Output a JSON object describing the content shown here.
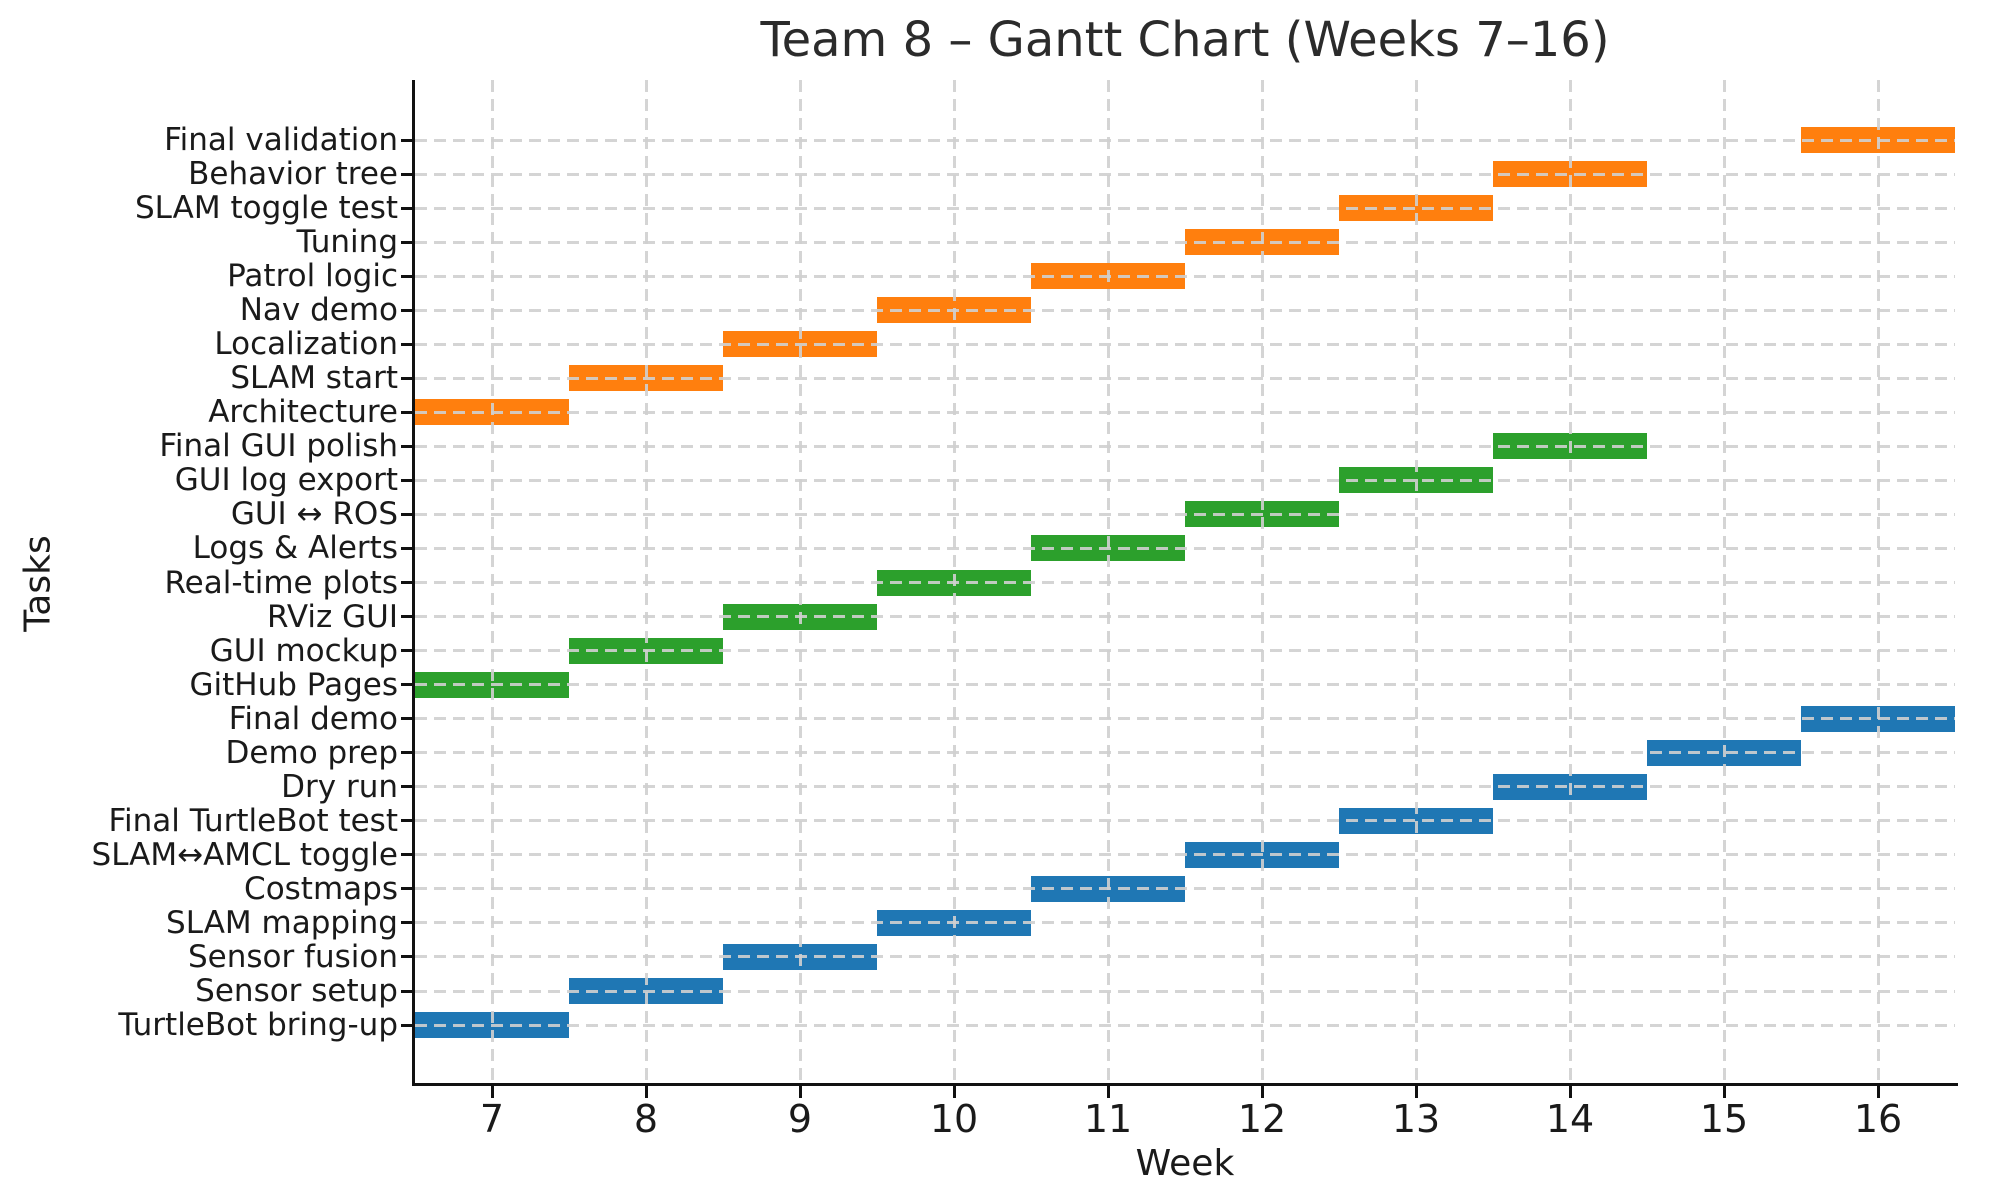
{
  "chart_data": {
    "type": "gantt",
    "title": "Team 8 – Gantt Chart (Weeks 7–16)",
    "xlabel": "Week",
    "ylabel": "Tasks",
    "xlim": [
      6.5,
      16.5
    ],
    "xticks": [
      7,
      8,
      9,
      10,
      11,
      12,
      13,
      14,
      15,
      16
    ],
    "grid": {
      "style": "dashed",
      "x": "integer weeks",
      "y": "every task row",
      "drawn_over_bars": true
    },
    "colors": {
      "orange_series": "#ff7f0e",
      "green_series": "#2ca02c",
      "blue_series": "#1f77b4"
    },
    "tasks": [
      {
        "label": "Final validation",
        "start": 15.5,
        "end": 16.5,
        "color": "#ff7f0e"
      },
      {
        "label": "Behavior tree",
        "start": 13.5,
        "end": 14.5,
        "color": "#ff7f0e"
      },
      {
        "label": "SLAM toggle test",
        "start": 12.5,
        "end": 13.5,
        "color": "#ff7f0e"
      },
      {
        "label": "Tuning",
        "start": 11.5,
        "end": 12.5,
        "color": "#ff7f0e"
      },
      {
        "label": "Patrol logic",
        "start": 10.5,
        "end": 11.5,
        "color": "#ff7f0e"
      },
      {
        "label": "Nav demo",
        "start": 9.5,
        "end": 10.5,
        "color": "#ff7f0e"
      },
      {
        "label": "Localization",
        "start": 8.5,
        "end": 9.5,
        "color": "#ff7f0e"
      },
      {
        "label": "SLAM start",
        "start": 7.5,
        "end": 8.5,
        "color": "#ff7f0e"
      },
      {
        "label": "Architecture",
        "start": 6.5,
        "end": 7.5,
        "color": "#ff7f0e"
      },
      {
        "label": "Final GUI polish",
        "start": 13.5,
        "end": 14.5,
        "color": "#2ca02c"
      },
      {
        "label": "GUI log export",
        "start": 12.5,
        "end": 13.5,
        "color": "#2ca02c"
      },
      {
        "label": "GUI ↔ ROS",
        "start": 11.5,
        "end": 12.5,
        "color": "#2ca02c"
      },
      {
        "label": "Logs & Alerts",
        "start": 10.5,
        "end": 11.5,
        "color": "#2ca02c"
      },
      {
        "label": "Real-time plots",
        "start": 9.5,
        "end": 10.5,
        "color": "#2ca02c"
      },
      {
        "label": "RViz GUI",
        "start": 8.5,
        "end": 9.5,
        "color": "#2ca02c"
      },
      {
        "label": "GUI mockup",
        "start": 7.5,
        "end": 8.5,
        "color": "#2ca02c"
      },
      {
        "label": "GitHub Pages",
        "start": 6.5,
        "end": 7.5,
        "color": "#2ca02c"
      },
      {
        "label": "Final demo",
        "start": 15.5,
        "end": 16.5,
        "color": "#1f77b4"
      },
      {
        "label": "Demo prep",
        "start": 14.5,
        "end": 15.5,
        "color": "#1f77b4"
      },
      {
        "label": "Dry run",
        "start": 13.5,
        "end": 14.5,
        "color": "#1f77b4"
      },
      {
        "label": "Final TurtleBot test",
        "start": 12.5,
        "end": 13.5,
        "color": "#1f77b4"
      },
      {
        "label": "SLAM↔AMCL toggle",
        "start": 11.5,
        "end": 12.5,
        "color": "#1f77b4"
      },
      {
        "label": "Costmaps",
        "start": 10.5,
        "end": 11.5,
        "color": "#1f77b4"
      },
      {
        "label": "SLAM mapping",
        "start": 9.5,
        "end": 10.5,
        "color": "#1f77b4"
      },
      {
        "label": "Sensor fusion",
        "start": 8.5,
        "end": 9.5,
        "color": "#1f77b4"
      },
      {
        "label": "Sensor setup",
        "start": 7.5,
        "end": 8.5,
        "color": "#1f77b4"
      },
      {
        "label": "TurtleBot bring-up",
        "start": 6.5,
        "end": 7.5,
        "color": "#1f77b4"
      }
    ]
  }
}
